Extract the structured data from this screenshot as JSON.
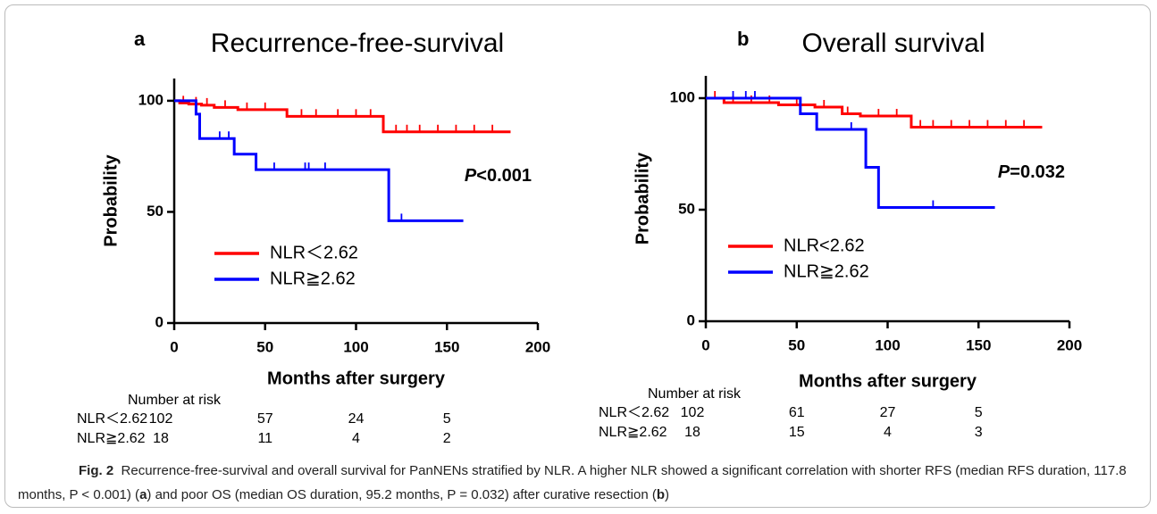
{
  "chart_data": [
    {
      "type": "line",
      "step": true,
      "panel": "a",
      "title": "Recurrence-free-survival",
      "xlabel": "Months after surgery",
      "ylabel": "Probability",
      "xlim": [
        0,
        200
      ],
      "ylim": [
        0,
        110
      ],
      "xticks": [
        0,
        50,
        100,
        150,
        200
      ],
      "yticks": [
        0,
        50,
        100
      ],
      "p_symbol": "P",
      "p_value": "<0.001",
      "series": [
        {
          "name": "NLR＜2.62",
          "color": "#ff0000",
          "x": [
            0,
            3,
            8,
            15,
            22,
            35,
            62,
            115,
            185
          ],
          "values": [
            100,
            99,
            98.5,
            98,
            97,
            96,
            93,
            86,
            86
          ],
          "censored": {
            "x": [
              5,
              12,
              18,
              28,
              40,
              50,
              70,
              78,
              90,
              100,
              108,
              122,
              128,
              135,
              145,
              155,
              165,
              175
            ],
            "values": [
              99,
              98.5,
              98,
              97,
              96,
              96,
              93,
              93,
              93,
              93,
              93,
              86,
              86,
              86,
              86,
              86,
              86,
              86
            ]
          }
        },
        {
          "name": "NLR≧2.62",
          "color": "#0000ff",
          "x": [
            0,
            12,
            14,
            33,
            45,
            118,
            159
          ],
          "values": [
            100,
            94,
            83,
            76,
            69,
            46,
            46
          ],
          "censored": {
            "x": [
              25,
              30,
              55,
              72,
              74,
              83,
              125
            ],
            "values": [
              83,
              83,
              69,
              69,
              69,
              69,
              46
            ]
          }
        }
      ],
      "risk_table": {
        "title": "Number at risk",
        "rows": [
          {
            "label": "NLR＜2.62",
            "counts": [
              102,
              57,
              24,
              5
            ]
          },
          {
            "label": "NLR≧2.62",
            "counts": [
              18,
              11,
              4,
              2
            ]
          }
        ]
      }
    },
    {
      "type": "line",
      "step": true,
      "panel": "b",
      "title": "Overall survival",
      "xlabel": "Months after surgery",
      "ylabel": "Probability",
      "xlim": [
        0,
        200
      ],
      "ylim": [
        0,
        110
      ],
      "xticks": [
        0,
        50,
        100,
        150,
        200
      ],
      "yticks": [
        0,
        50,
        100
      ],
      "p_symbol": "P",
      "p_value": "=0.032",
      "series": [
        {
          "name": "NLR<2.62",
          "color": "#ff0000",
          "x": [
            0,
            10,
            40,
            60,
            75,
            85,
            113,
            185
          ],
          "values": [
            100,
            98,
            97,
            96,
            93,
            92,
            87,
            87
          ],
          "censored": {
            "x": [
              5,
              15,
              25,
              35,
              50,
              65,
              78,
              95,
              105,
              118,
              125,
              135,
              145,
              155,
              165,
              175
            ],
            "values": [
              100,
              98,
              98,
              98,
              97,
              96,
              93,
              92,
              92,
              87,
              87,
              87,
              87,
              87,
              87,
              87
            ]
          }
        },
        {
          "name": "NLR≧2.62",
          "color": "#0000ff",
          "x": [
            0,
            52,
            61,
            88,
            95,
            159
          ],
          "values": [
            100,
            93,
            86,
            69,
            51,
            51
          ],
          "censored": {
            "x": [
              15,
              22,
              27,
              80,
              125
            ],
            "values": [
              100,
              100,
              100,
              86,
              51
            ]
          }
        }
      ],
      "risk_table": {
        "title": "Number at risk",
        "rows": [
          {
            "label": "NLR＜2.62",
            "counts": [
              102,
              61,
              27,
              5
            ]
          },
          {
            "label": "NLR≧2.62",
            "counts": [
              18,
              15,
              4,
              3
            ]
          }
        ]
      }
    }
  ],
  "caption": {
    "label": "Fig. 2",
    "parts": [
      "Recurrence-free-survival and overall survival for PanNENs stratified by NLR. A higher NLR showed a significant correlation with shorter RFS (median RFS duration, 117.8 months, P < 0.001) (",
      "a",
      ") and poor OS (median OS duration, 95.2 months, P = 0.032) after curative resection (",
      "b",
      ")"
    ]
  }
}
